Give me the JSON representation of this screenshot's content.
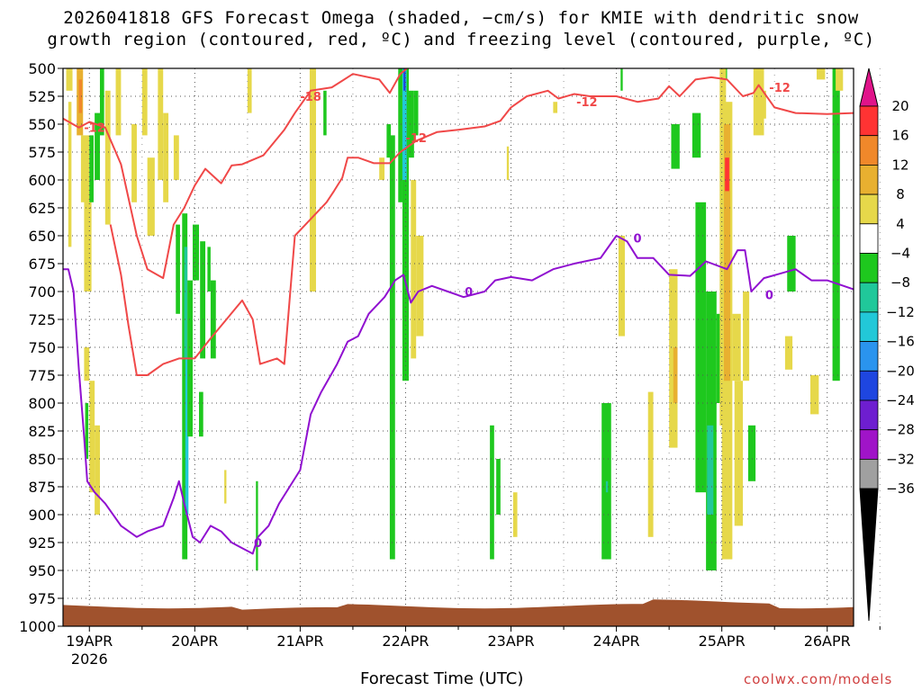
{
  "title_lines": [
    "2026041818 GFS Forecast Omega (shaded, −cm/s) for KMIE with dendritic snow",
    "growth region (contoured, red, ºC) and freezing level (contoured, purple, ºC)"
  ],
  "xlabel": "Forecast Time (UTC)",
  "credit": "coolwx.com/models",
  "chart_data": {
    "type": "heatmap",
    "title": "2026041818 GFS Forecast Omega (shaded, −cm/s) for KMIE with dendritic snow growth region (contoured, red, ºC) and freezing level (contoured, purple, ºC)",
    "xlabel": "Forecast Time (UTC)",
    "ylabel": "",
    "x_ticks": [
      "19APR",
      "20APR",
      "21APR",
      "22APR",
      "23APR",
      "24APR",
      "25APR",
      "26APR"
    ],
    "x_year_label": "2026",
    "y_axis": "pressure (hPa), reversed",
    "y_ticks": [
      500,
      525,
      550,
      575,
      600,
      625,
      650,
      675,
      700,
      725,
      750,
      775,
      800,
      825,
      850,
      875,
      900,
      925,
      950,
      975,
      1000
    ],
    "ylim": [
      1000,
      500
    ],
    "xlim_days_from_19APR": [
      -0.25,
      7.25
    ],
    "grid": true,
    "colorbar": {
      "levels": [
        20,
        16,
        12,
        8,
        4,
        -4,
        -8,
        -12,
        -16,
        -20,
        -24,
        -28,
        -32,
        -36
      ],
      "colors": [
        "#ff3333",
        "#f0882a",
        "#e8b030",
        "#e6d84a",
        "#ffffff",
        "#1ec81e",
        "#20c89a",
        "#22c8d8",
        "#2a94ee",
        "#1e46e0",
        "#6e1ed0",
        "#a014c8",
        "#a0a0a0"
      ],
      "extend_high_color": "#e0148a",
      "extend_low_color": "#000000"
    },
    "contour_labels": {
      "dendritic_red": [
        "-12",
        "-18"
      ],
      "freezing_purple": [
        "0"
      ]
    },
    "dendritic_upper_contour": [
      {
        "t": -0.25,
        "p": 545
      },
      {
        "t": -0.1,
        "p": 553
      },
      {
        "t": 0.0,
        "p": 548
      },
      {
        "t": 0.15,
        "p": 553
      },
      {
        "t": 0.3,
        "p": 586
      },
      {
        "t": 0.45,
        "p": 650
      },
      {
        "t": 0.55,
        "p": 680
      },
      {
        "t": 0.7,
        "p": 688
      },
      {
        "t": 0.8,
        "p": 640
      },
      {
        "t": 0.9,
        "p": 625
      },
      {
        "t": 1.0,
        "p": 605
      },
      {
        "t": 1.1,
        "p": 590
      },
      {
        "t": 1.25,
        "p": 603
      },
      {
        "t": 1.35,
        "p": 587
      },
      {
        "t": 1.45,
        "p": 586
      },
      {
        "t": 1.65,
        "p": 578
      },
      {
        "t": 1.85,
        "p": 555
      },
      {
        "t": 1.95,
        "p": 540
      },
      {
        "t": 2.1,
        "p": 520
      },
      {
        "t": 2.3,
        "p": 517
      },
      {
        "t": 2.5,
        "p": 505
      },
      {
        "t": 2.75,
        "p": 510
      },
      {
        "t": 2.85,
        "p": 522
      },
      {
        "t": 2.95,
        "p": 505
      },
      {
        "t": 3.1,
        "p": 493
      }
    ],
    "dendritic_lower_contour": [
      {
        "t": 0.2,
        "p": 640
      },
      {
        "t": 0.3,
        "p": 685
      },
      {
        "t": 0.37,
        "p": 730
      },
      {
        "t": 0.45,
        "p": 775
      },
      {
        "t": 0.55,
        "p": 775
      },
      {
        "t": 0.7,
        "p": 765
      },
      {
        "t": 0.85,
        "p": 760
      },
      {
        "t": 1.0,
        "p": 760
      },
      {
        "t": 1.15,
        "p": 742
      },
      {
        "t": 1.3,
        "p": 725
      },
      {
        "t": 1.45,
        "p": 708
      },
      {
        "t": 1.55,
        "p": 725
      },
      {
        "t": 1.62,
        "p": 765
      },
      {
        "t": 1.78,
        "p": 760
      },
      {
        "t": 1.85,
        "p": 765
      },
      {
        "t": 1.95,
        "p": 650
      },
      {
        "t": 2.05,
        "p": 640
      },
      {
        "t": 2.15,
        "p": 630
      },
      {
        "t": 2.25,
        "p": 620
      },
      {
        "t": 2.32,
        "p": 610
      },
      {
        "t": 2.4,
        "p": 598
      },
      {
        "t": 2.45,
        "p": 580
      },
      {
        "t": 2.55,
        "p": 580
      },
      {
        "t": 2.7,
        "p": 585
      },
      {
        "t": 2.85,
        "p": 585
      },
      {
        "t": 2.95,
        "p": 575
      },
      {
        "t": 3.1,
        "p": 565
      },
      {
        "t": 3.3,
        "p": 557
      },
      {
        "t": 3.5,
        "p": 555
      },
      {
        "t": 3.75,
        "p": 552
      },
      {
        "t": 3.9,
        "p": 547
      },
      {
        "t": 4.0,
        "p": 535
      },
      {
        "t": 4.15,
        "p": 525
      },
      {
        "t": 4.35,
        "p": 520
      },
      {
        "t": 4.45,
        "p": 527
      },
      {
        "t": 4.6,
        "p": 523
      },
      {
        "t": 4.75,
        "p": 525
      },
      {
        "t": 5.0,
        "p": 525
      },
      {
        "t": 5.2,
        "p": 530
      },
      {
        "t": 5.4,
        "p": 527
      },
      {
        "t": 5.5,
        "p": 516
      },
      {
        "t": 5.6,
        "p": 525
      },
      {
        "t": 5.75,
        "p": 510
      },
      {
        "t": 5.9,
        "p": 508
      },
      {
        "t": 6.05,
        "p": 510
      },
      {
        "t": 6.2,
        "p": 525
      },
      {
        "t": 6.3,
        "p": 522
      },
      {
        "t": 6.35,
        "p": 515
      },
      {
        "t": 6.5,
        "p": 535
      },
      {
        "t": 6.7,
        "p": 540
      },
      {
        "t": 7.0,
        "p": 541
      },
      {
        "t": 7.25,
        "p": 540
      }
    ],
    "freezing_level_contour": [
      {
        "t": -0.25,
        "p": 680
      },
      {
        "t": -0.2,
        "p": 680
      },
      {
        "t": -0.15,
        "p": 700
      },
      {
        "t": -0.1,
        "p": 770
      },
      {
        "t": -0.05,
        "p": 830
      },
      {
        "t": -0.02,
        "p": 870
      },
      {
        "t": 0.05,
        "p": 880
      },
      {
        "t": 0.15,
        "p": 890
      },
      {
        "t": 0.3,
        "p": 910
      },
      {
        "t": 0.45,
        "p": 920
      },
      {
        "t": 0.55,
        "p": 915
      },
      {
        "t": 0.7,
        "p": 910
      },
      {
        "t": 0.8,
        "p": 885
      },
      {
        "t": 0.85,
        "p": 870
      },
      {
        "t": 0.9,
        "p": 890
      },
      {
        "t": 0.98,
        "p": 920
      },
      {
        "t": 1.05,
        "p": 925
      },
      {
        "t": 1.15,
        "p": 910
      },
      {
        "t": 1.25,
        "p": 915
      },
      {
        "t": 1.35,
        "p": 925
      },
      {
        "t": 1.45,
        "p": 930
      },
      {
        "t": 1.55,
        "p": 935
      },
      {
        "t": 1.6,
        "p": 920
      },
      {
        "t": 1.7,
        "p": 910
      },
      {
        "t": 1.8,
        "p": 890
      },
      {
        "t": 1.9,
        "p": 875
      },
      {
        "t": 2.0,
        "p": 860
      },
      {
        "t": 2.1,
        "p": 810
      },
      {
        "t": 2.2,
        "p": 790
      },
      {
        "t": 2.35,
        "p": 765
      },
      {
        "t": 2.45,
        "p": 745
      },
      {
        "t": 2.55,
        "p": 740
      },
      {
        "t": 2.65,
        "p": 720
      },
      {
        "t": 2.8,
        "p": 705
      },
      {
        "t": 2.9,
        "p": 690
      },
      {
        "t": 2.98,
        "p": 685
      },
      {
        "t": 3.05,
        "p": 710
      },
      {
        "t": 3.12,
        "p": 700
      },
      {
        "t": 3.25,
        "p": 695
      },
      {
        "t": 3.4,
        "p": 700
      },
      {
        "t": 3.55,
        "p": 705
      },
      {
        "t": 3.75,
        "p": 700
      },
      {
        "t": 3.85,
        "p": 690
      },
      {
        "t": 4.0,
        "p": 687
      },
      {
        "t": 4.2,
        "p": 690
      },
      {
        "t": 4.4,
        "p": 680
      },
      {
        "t": 4.6,
        "p": 675
      },
      {
        "t": 4.85,
        "p": 670
      },
      {
        "t": 5.0,
        "p": 650
      },
      {
        "t": 5.1,
        "p": 655
      },
      {
        "t": 5.2,
        "p": 670
      },
      {
        "t": 5.35,
        "p": 670
      },
      {
        "t": 5.5,
        "p": 685
      },
      {
        "t": 5.7,
        "p": 686
      },
      {
        "t": 5.85,
        "p": 673
      },
      {
        "t": 6.05,
        "p": 680
      },
      {
        "t": 6.15,
        "p": 663
      },
      {
        "t": 6.22,
        "p": 663
      },
      {
        "t": 6.28,
        "p": 700
      },
      {
        "t": 6.4,
        "p": 688
      },
      {
        "t": 6.55,
        "p": 684
      },
      {
        "t": 6.7,
        "p": 680
      },
      {
        "t": 6.85,
        "p": 690
      },
      {
        "t": 7.0,
        "p": 690
      },
      {
        "t": 7.25,
        "p": 698
      }
    ],
    "omega_cells": [
      {
        "t0": -0.22,
        "t1": -0.16,
        "p0": 500,
        "p1": 520,
        "v": 6
      },
      {
        "t0": -0.2,
        "t1": -0.17,
        "p0": 530,
        "p1": 660,
        "v": 5
      },
      {
        "t0": -0.12,
        "t1": -0.06,
        "p0": 500,
        "p1": 560,
        "v": 10
      },
      {
        "t0": -0.1,
        "t1": -0.07,
        "p0": 510,
        "p1": 540,
        "v": 13
      },
      {
        "t0": -0.08,
        "t1": 0.0,
        "p0": 560,
        "p1": 620,
        "v": 5
      },
      {
        "t0": -0.05,
        "t1": 0.02,
        "p0": 610,
        "p1": 700,
        "v": 6
      },
      {
        "t0": 0.0,
        "t1": 0.04,
        "p0": 560,
        "p1": 620,
        "v": -6
      },
      {
        "t0": 0.05,
        "t1": 0.1,
        "p0": 540,
        "p1": 600,
        "v": -6
      },
      {
        "t0": 0.1,
        "t1": 0.14,
        "p0": 500,
        "p1": 560,
        "v": -6
      },
      {
        "t0": -0.05,
        "t1": 0.0,
        "p0": 750,
        "p1": 780,
        "v": 5
      },
      {
        "t0": -0.04,
        "t1": -0.01,
        "p0": 800,
        "p1": 850,
        "v": -6
      },
      {
        "t0": 0.0,
        "t1": 0.05,
        "p0": 780,
        "p1": 880,
        "v": 5
      },
      {
        "t0": 0.05,
        "t1": 0.1,
        "p0": 820,
        "p1": 900,
        "v": 6
      },
      {
        "t0": 0.15,
        "t1": 0.2,
        "p0": 520,
        "p1": 640,
        "v": 5
      },
      {
        "t0": 0.25,
        "t1": 0.3,
        "p0": 500,
        "p1": 560,
        "v": 5
      },
      {
        "t0": 0.4,
        "t1": 0.45,
        "p0": 550,
        "p1": 620,
        "v": 5
      },
      {
        "t0": 0.5,
        "t1": 0.55,
        "p0": 500,
        "p1": 560,
        "v": 6
      },
      {
        "t0": 0.55,
        "t1": 0.62,
        "p0": 580,
        "p1": 650,
        "v": 5
      },
      {
        "t0": 0.65,
        "t1": 0.7,
        "p0": 500,
        "p1": 600,
        "v": 5
      },
      {
        "t0": 0.7,
        "t1": 0.75,
        "p0": 540,
        "p1": 620,
        "v": 6
      },
      {
        "t0": 0.82,
        "t1": 0.86,
        "p0": 640,
        "p1": 720,
        "v": -6
      },
      {
        "t0": 0.88,
        "t1": 0.93,
        "p0": 630,
        "p1": 940,
        "v": -6
      },
      {
        "t0": 0.9,
        "t1": 0.93,
        "p0": 660,
        "p1": 760,
        "v": -10
      },
      {
        "t0": 0.91,
        "t1": 0.94,
        "p0": 760,
        "p1": 900,
        "v": -14
      },
      {
        "t0": 0.93,
        "t1": 0.98,
        "p0": 690,
        "p1": 830,
        "v": -6
      },
      {
        "t0": 0.98,
        "t1": 1.04,
        "p0": 640,
        "p1": 690,
        "v": -6
      },
      {
        "t0": 1.05,
        "t1": 1.1,
        "p0": 655,
        "p1": 760,
        "v": -6
      },
      {
        "t0": 1.12,
        "t1": 1.15,
        "p0": 660,
        "p1": 700,
        "v": -6
      },
      {
        "t0": 1.15,
        "t1": 1.2,
        "p0": 690,
        "p1": 760,
        "v": -6
      },
      {
        "t0": 1.04,
        "t1": 1.08,
        "p0": 790,
        "p1": 830,
        "v": -6
      },
      {
        "t0": 0.8,
        "t1": 0.85,
        "p0": 560,
        "p1": 600,
        "v": 5
      },
      {
        "t0": 1.28,
        "t1": 1.3,
        "p0": 860,
        "p1": 890,
        "v": 5
      },
      {
        "t0": 1.5,
        "t1": 1.54,
        "p0": 500,
        "p1": 540,
        "v": 5
      },
      {
        "t0": 1.58,
        "t1": 1.6,
        "p0": 870,
        "p1": 950,
        "v": -6
      },
      {
        "t0": 2.09,
        "t1": 2.15,
        "p0": 500,
        "p1": 700,
        "v": 5
      },
      {
        "t0": 2.22,
        "t1": 2.25,
        "p0": 520,
        "p1": 560,
        "v": -6
      },
      {
        "t0": 2.75,
        "t1": 2.8,
        "p0": 580,
        "p1": 600,
        "v": 5
      },
      {
        "t0": 2.82,
        "t1": 2.86,
        "p0": 550,
        "p1": 580,
        "v": -6
      },
      {
        "t0": 2.85,
        "t1": 2.9,
        "p0": 560,
        "p1": 940,
        "v": -6
      },
      {
        "t0": 2.93,
        "t1": 2.97,
        "p0": 500,
        "p1": 620,
        "v": -6
      },
      {
        "t0": 2.97,
        "t1": 3.03,
        "p0": 500,
        "p1": 780,
        "v": -6
      },
      {
        "t0": 2.97,
        "t1": 3.01,
        "p0": 500,
        "p1": 600,
        "v": -14
      },
      {
        "t0": 2.98,
        "t1": 3.0,
        "p0": 500,
        "p1": 520,
        "v": -20
      },
      {
        "t0": 3.03,
        "t1": 3.08,
        "p0": 520,
        "p1": 580,
        "v": -6
      },
      {
        "t0": 3.05,
        "t1": 3.1,
        "p0": 600,
        "p1": 760,
        "v": 5
      },
      {
        "t0": 3.1,
        "t1": 3.17,
        "p0": 650,
        "p1": 740,
        "v": 5
      },
      {
        "t0": 3.08,
        "t1": 3.12,
        "p0": 520,
        "p1": 560,
        "v": -6
      },
      {
        "t0": 3.8,
        "t1": 3.84,
        "p0": 820,
        "p1": 940,
        "v": -6
      },
      {
        "t0": 3.86,
        "t1": 3.9,
        "p0": 850,
        "p1": 900,
        "v": -6
      },
      {
        "t0": 3.96,
        "t1": 3.98,
        "p0": 570,
        "p1": 600,
        "v": 5
      },
      {
        "t0": 4.02,
        "t1": 4.06,
        "p0": 880,
        "p1": 920,
        "v": 5
      },
      {
        "t0": 4.4,
        "t1": 4.44,
        "p0": 530,
        "p1": 540,
        "v": 5
      },
      {
        "t0": 4.86,
        "t1": 4.95,
        "p0": 800,
        "p1": 940,
        "v": -6
      },
      {
        "t0": 4.9,
        "t1": 4.92,
        "p0": 870,
        "p1": 880,
        "v": -10
      },
      {
        "t0": 5.02,
        "t1": 5.08,
        "p0": 650,
        "p1": 740,
        "v": 5
      },
      {
        "t0": 5.04,
        "t1": 5.06,
        "p0": 500,
        "p1": 520,
        "v": -6
      },
      {
        "t0": 5.3,
        "t1": 5.35,
        "p0": 790,
        "p1": 920,
        "v": 5
      },
      {
        "t0": 5.52,
        "t1": 5.6,
        "p0": 550,
        "p1": 590,
        "v": -6
      },
      {
        "t0": 5.5,
        "t1": 5.58,
        "p0": 680,
        "p1": 840,
        "v": 5
      },
      {
        "t0": 5.54,
        "t1": 5.58,
        "p0": 750,
        "p1": 800,
        "v": 10
      },
      {
        "t0": 5.72,
        "t1": 5.8,
        "p0": 540,
        "p1": 580,
        "v": -6
      },
      {
        "t0": 5.75,
        "t1": 5.85,
        "p0": 620,
        "p1": 880,
        "v": -6
      },
      {
        "t0": 5.85,
        "t1": 5.95,
        "p0": 700,
        "p1": 950,
        "v": -6
      },
      {
        "t0": 5.86,
        "t1": 5.92,
        "p0": 820,
        "p1": 900,
        "v": -10
      },
      {
        "t0": 5.95,
        "t1": 6.0,
        "p0": 720,
        "p1": 800,
        "v": -6
      },
      {
        "t0": 6.0,
        "t1": 6.05,
        "p0": 500,
        "p1": 510,
        "v": -6
      },
      {
        "t0": 5.98,
        "t1": 6.04,
        "p0": 500,
        "p1": 820,
        "v": 5
      },
      {
        "t0": 6.0,
        "t1": 6.1,
        "p0": 530,
        "p1": 940,
        "v": 8
      },
      {
        "t0": 6.02,
        "t1": 6.08,
        "p0": 550,
        "p1": 780,
        "v": 12
      },
      {
        "t0": 6.03,
        "t1": 6.07,
        "p0": 580,
        "p1": 610,
        "v": 18
      },
      {
        "t0": 6.1,
        "t1": 6.18,
        "p0": 720,
        "p1": 780,
        "v": 5
      },
      {
        "t0": 6.12,
        "t1": 6.2,
        "p0": 780,
        "p1": 910,
        "v": 5
      },
      {
        "t0": 6.2,
        "t1": 6.26,
        "p0": 700,
        "p1": 780,
        "v": 5
      },
      {
        "t0": 6.25,
        "t1": 6.32,
        "p0": 820,
        "p1": 870,
        "v": -6
      },
      {
        "t0": 6.3,
        "t1": 6.4,
        "p0": 500,
        "p1": 560,
        "v": 5
      },
      {
        "t0": 6.35,
        "t1": 6.42,
        "p0": 520,
        "p1": 545,
        "v": 6
      },
      {
        "t0": 6.62,
        "t1": 6.7,
        "p0": 650,
        "p1": 700,
        "v": -6
      },
      {
        "t0": 6.6,
        "t1": 6.67,
        "p0": 740,
        "p1": 770,
        "v": 5
      },
      {
        "t0": 6.84,
        "t1": 6.92,
        "p0": 775,
        "p1": 810,
        "v": 5
      },
      {
        "t0": 6.9,
        "t1": 6.98,
        "p0": 500,
        "p1": 510,
        "v": 5
      },
      {
        "t0": 7.05,
        "t1": 7.12,
        "p0": 500,
        "p1": 780,
        "v": -6
      },
      {
        "t0": 7.08,
        "t1": 7.15,
        "p0": 500,
        "p1": 520,
        "v": 5
      }
    ],
    "terrain_color": "#a0522d"
  }
}
